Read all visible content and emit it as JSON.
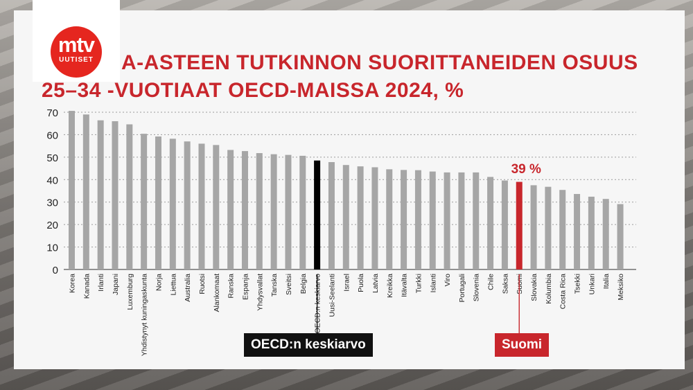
{
  "brand": {
    "logo_main": "mtv",
    "logo_sub": "UUTISET"
  },
  "title": {
    "line1": "A-ASTEEN TUTKINNON SUORITTANEIDEN OSUUS",
    "line2": "25–34 -VUOTIAAT OECD-MAISSA 2024, %"
  },
  "colors": {
    "bar": "#a6a6a6",
    "average": "#000000",
    "highlight": "#c8262c"
  },
  "callouts": {
    "average_label": "OECD:n keskiarvo",
    "highlight_label": "Suomi",
    "highlight_value_label": "39 %"
  },
  "chart_data": {
    "type": "bar",
    "title": "A-ASTEEN TUTKINNON SUORITTANEIDEN OSUUS 25–34 -VUOTIAAT OECD-MAISSA 2024, %",
    "xlabel": "",
    "ylabel": "",
    "ylim": [
      0,
      70
    ],
    "yticks": [
      "0",
      "10",
      "20",
      "30",
      "40",
      "50",
      "60",
      "70"
    ],
    "grid": true,
    "legend": "none",
    "categories": [
      "Korea",
      "Kanada",
      "Irlanti",
      "Japani",
      "Luxemburg",
      "Yhdistynyt kuningaskunta",
      "Norja",
      "Liettua",
      "Australia",
      "Ruotsi",
      "Alankomaat",
      "Ranska",
      "Espanja",
      "Yhdysvallat",
      "Tanska",
      "Sveitsi",
      "Belgia",
      "OECD:n keskiarvo",
      "Uusi-Seelanti",
      "Israel",
      "Puola",
      "Latvia",
      "Kreikka",
      "Itävalta",
      "Turkki",
      "Islanti",
      "Viro",
      "Portugali",
      "Slovenia",
      "Chile",
      "Saksa",
      "Suomi",
      "Slovakia",
      "Kolumbia",
      "Costa Rica",
      "Tsekki",
      "Unkari",
      "Italia",
      "Meksiko"
    ],
    "values": [
      70.6,
      69.0,
      66.4,
      66.0,
      64.6,
      60.4,
      59.2,
      58.2,
      57.0,
      56.0,
      55.4,
      53.2,
      52.7,
      51.8,
      51.3,
      51.0,
      50.6,
      48.5,
      47.8,
      46.5,
      45.9,
      45.5,
      44.6,
      44.3,
      44.2,
      43.6,
      43.2,
      43.2,
      43.2,
      41.2,
      39.6,
      39.0,
      37.5,
      36.8,
      35.4,
      33.6,
      32.4,
      31.4,
      29.1
    ],
    "average_index": 17,
    "highlight_index": 31
  }
}
